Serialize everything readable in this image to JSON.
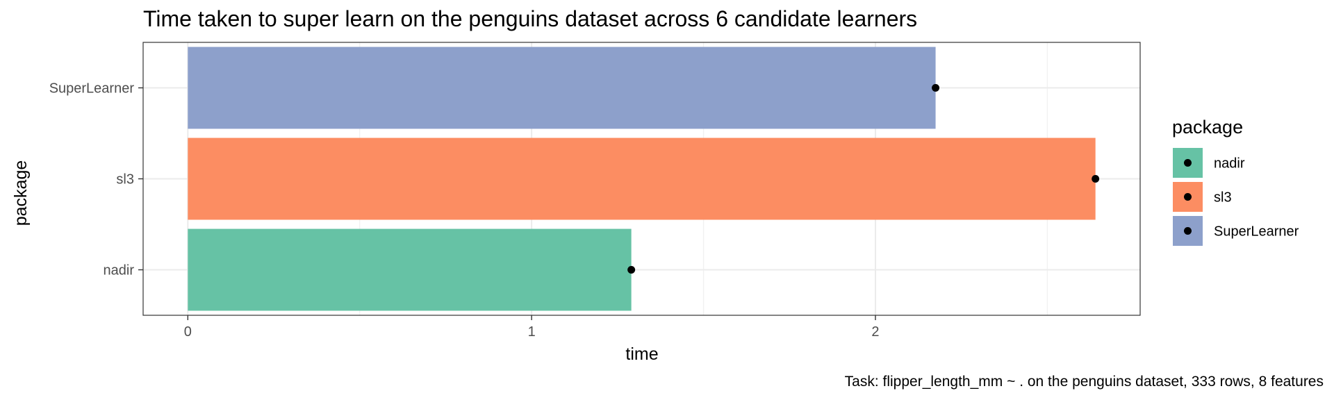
{
  "chart_data": {
    "type": "bar",
    "orientation": "horizontal",
    "title": "Time taken to super learn on the penguins dataset across 6 candidate learners",
    "xlabel": "time",
    "ylabel": "package",
    "xlim": [
      -0.13,
      2.77
    ],
    "x_ticks": [
      0,
      1,
      2
    ],
    "x_tick_labels": [
      "0",
      "1",
      "2"
    ],
    "grid": true,
    "categories": [
      "nadir",
      "sl3",
      "SuperLearner"
    ],
    "values": [
      1.29,
      2.64,
      2.175
    ],
    "point_values": [
      1.29,
      2.64,
      2.175
    ],
    "colors": [
      "#66c2a5",
      "#fc8d62",
      "#8da0cb"
    ],
    "legend": {
      "title": "package",
      "position": "right",
      "items": [
        "nadir",
        "sl3",
        "SuperLearner"
      ]
    },
    "caption": "Task: flipper_length_mm ~ . on the penguins dataset, 333 rows, 8 features"
  }
}
